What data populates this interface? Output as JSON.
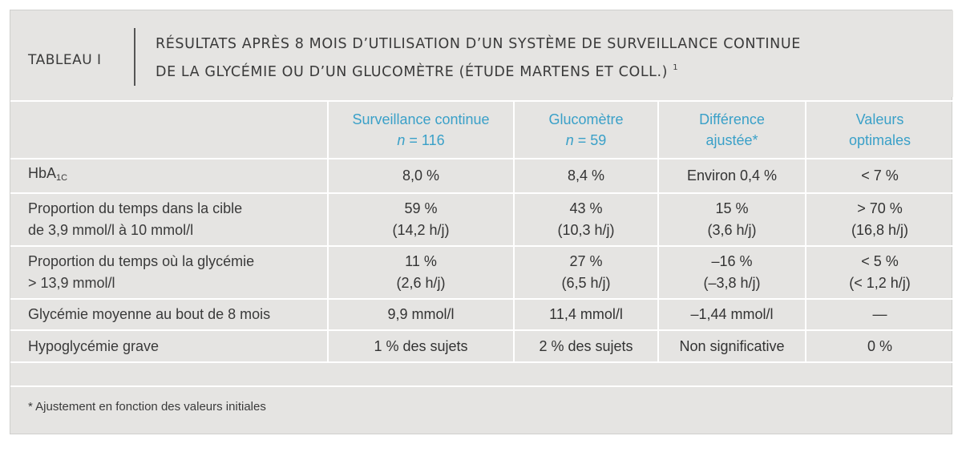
{
  "header": {
    "label": "TABLEAU I",
    "title_line1": "RÉSULTATS APRÈS 8 MOIS D’UTILISATION D’UN SYSTÈME DE SURVEILLANCE CONTINUE",
    "title_line2": "DE LA GLYCÉMIE OU D’UN GLUCOMÈTRE (ÉTUDE MARTENS ET COLL.)",
    "title_ref": "1"
  },
  "columns": [
    {
      "line1": "Surveillance continue",
      "n_label": "n",
      "n_value": " = 116"
    },
    {
      "line1": "Glucomètre",
      "n_label": "n",
      "n_value": " = 59"
    },
    {
      "line1": "Différence",
      "line2": "ajustée*"
    },
    {
      "line1": "Valeurs",
      "line2": "optimales"
    }
  ],
  "rows": [
    {
      "label_main": "HbA",
      "label_sub": "1C",
      "cells": [
        "8,0 %",
        "8,4 %",
        "Environ 0,4 %",
        "< 7 %"
      ]
    },
    {
      "label_line1": "Proportion du temps dans la cible",
      "label_line2": "de 3,9 mmol/l à 10 mmol/l",
      "cells": [
        {
          "a": "59 %",
          "b": "(14,2 h/j)"
        },
        {
          "a": "43 %",
          "b": "(10,3 h/j)"
        },
        {
          "a": "15 %",
          "b": "(3,6 h/j)"
        },
        {
          "a": "> 70 %",
          "b": "(16,8 h/j)"
        }
      ]
    },
    {
      "label_line1": "Proportion du temps où la glycémie",
      "label_line2": "> 13,9 mmol/l",
      "cells": [
        {
          "a": "11 %",
          "b": "(2,6 h/j)"
        },
        {
          "a": "27 %",
          "b": "(6,5 h/j)"
        },
        {
          "a": "–16 %",
          "b": "(–3,8 h/j)"
        },
        {
          "a": "< 5 %",
          "b": "(< 1,2 h/j)"
        }
      ]
    },
    {
      "label": "Glycémie moyenne au bout de 8 mois",
      "cells": [
        "9,9 mmol/l",
        "11,4 mmol/l",
        "–1,44 mmol/l",
        "—"
      ]
    },
    {
      "label": "Hypoglycémie grave",
      "cells": [
        "1 % des sujets",
        "2 % des sujets",
        "Non significative",
        "0 %"
      ]
    }
  ],
  "footnote": "* Ajustement en fonction des valeurs initiales",
  "colors": {
    "panel": "#e5e4e2",
    "header_accent": "#3aa0c8",
    "divider": "#ffffff",
    "text": "#3a3a3a"
  }
}
